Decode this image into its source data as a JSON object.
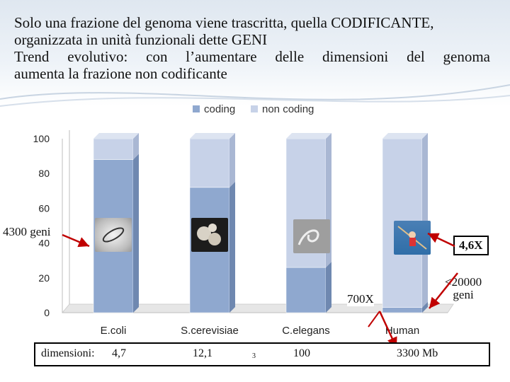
{
  "header": {
    "line1": "Solo una frazione del genoma viene trascritta, quella CODIFICANTE,",
    "line2": "organizzata in unità funzionali dette GENI",
    "line3": "Trend evolutivo: con l’aumentare delle dimensioni del genoma",
    "line4": "aumenta la frazione non codificante"
  },
  "chart_data": {
    "type": "bar",
    "stacked": true,
    "categories": [
      "E.coli",
      "S.cerevisiae",
      "C.elegans",
      "Human"
    ],
    "series": [
      {
        "name": "coding",
        "values": [
          88,
          72,
          26,
          3
        ],
        "color": "#8fa8cf"
      },
      {
        "name": "non coding",
        "values": [
          12,
          28,
          74,
          97
        ],
        "color": "#c7d2e8"
      }
    ],
    "yticks": [
      "0",
      "20",
      "40",
      "60",
      "80",
      "100"
    ],
    "ylim": [
      0,
      100
    ],
    "legend_position": "top",
    "grid": false
  },
  "annotations": {
    "ecoli_genes": "4300 geni",
    "ratio_size": "4,6X",
    "ratio_700": "700X",
    "human_genes_l1": "<20000",
    "human_genes_l2": "geni"
  },
  "dimensions": {
    "label": "dimensioni:",
    "ecoli": "4,7",
    "yeast": "12,1",
    "page_mark": "3",
    "elegans": "100",
    "human": "3300  Mb"
  },
  "icons": [
    "bacterium-photo-icon",
    "yeast-photo-icon",
    "worm-photo-icon",
    "kayaker-photo-icon"
  ]
}
